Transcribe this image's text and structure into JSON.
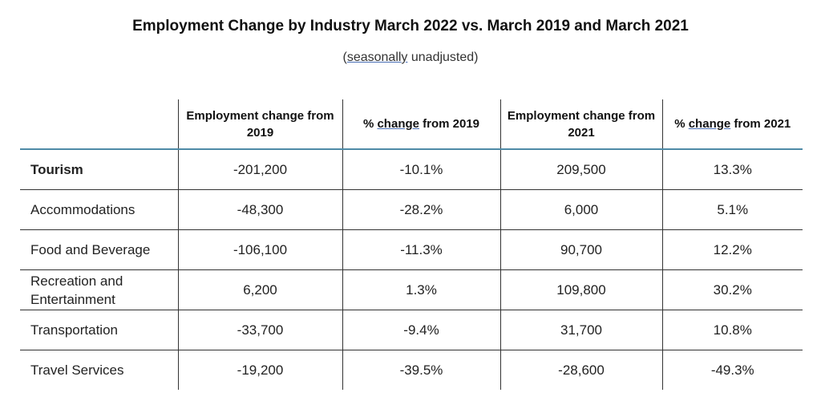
{
  "title": "Employment Change by Industry March 2022 vs. March 2019 and March 2021",
  "subtitle": {
    "open": "(",
    "underlined": "seasonally",
    "rest": " unadjusted)"
  },
  "table": {
    "headers": [
      "",
      "Employment change from 2019",
      "% change from 2019",
      "Employment change from 2021",
      "% change from 2021"
    ],
    "rows": [
      {
        "industry": "Tourism",
        "emp_change_2019": "-201,200",
        "pct_change_2019": "-10.1%",
        "emp_change_2021": "209,500",
        "pct_change_2021": "13.3%"
      },
      {
        "industry": "Accommodations",
        "emp_change_2019": "-48,300",
        "pct_change_2019": "-28.2%",
        "emp_change_2021": "6,000",
        "pct_change_2021": "5.1%"
      },
      {
        "industry": "Food and Beverage",
        "emp_change_2019": "-106,100",
        "pct_change_2019": "-11.3%",
        "emp_change_2021": "90,700",
        "pct_change_2021": "12.2%"
      },
      {
        "industry": "Recreation and Entertainment",
        "emp_change_2019": "6,200",
        "pct_change_2019": "1.3%",
        "emp_change_2021": "109,800",
        "pct_change_2021": "30.2%"
      },
      {
        "industry": "Transportation",
        "emp_change_2019": "-33,700",
        "pct_change_2019": "-9.4%",
        "emp_change_2021": "31,700",
        "pct_change_2021": "10.8%"
      },
      {
        "industry": "Travel Services",
        "emp_change_2019": "-19,200",
        "pct_change_2019": "-39.5%",
        "emp_change_2021": "-28,600",
        "pct_change_2021": "-49.3%"
      }
    ]
  },
  "colors": {
    "header_rule": "#4e8aa6",
    "underline": "#4a6fb5"
  }
}
